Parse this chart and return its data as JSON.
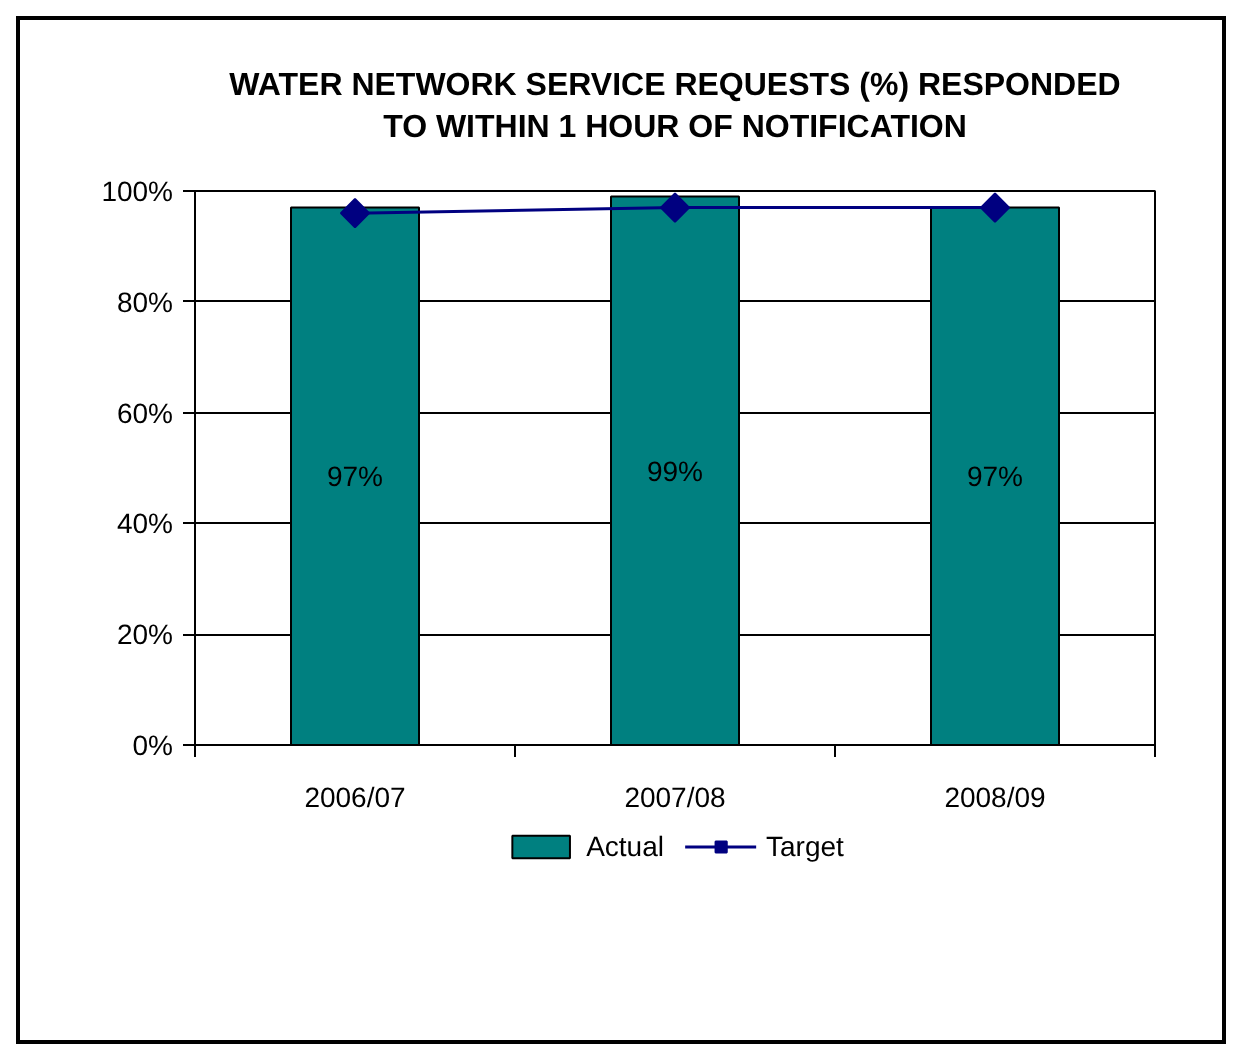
{
  "chart_data": {
    "type": "bar",
    "title": "WATER NETWORK SERVICE REQUESTS (%) RESPONDED\nTO WITHIN 1 HOUR OF NOTIFICATION",
    "categories": [
      "2006/07",
      "2007/08",
      "2008/09"
    ],
    "series": [
      {
        "name": "Actual",
        "color": "#008080",
        "values": [
          97,
          99,
          97
        ],
        "value_labels": [
          "97%",
          "99%",
          "97%"
        ]
      },
      {
        "name": "Target",
        "type": "line",
        "color": "#000080",
        "values": [
          96,
          97,
          97
        ],
        "marker": "diamond",
        "line_style": "solid"
      }
    ],
    "ylim": [
      0,
      100
    ],
    "yticks": [
      {
        "value": 0,
        "label": "0%"
      },
      {
        "value": 20,
        "label": "20%"
      },
      {
        "value": 40,
        "label": "40%"
      },
      {
        "value": 60,
        "label": "60%"
      },
      {
        "value": 80,
        "label": "80%"
      },
      {
        "value": 100,
        "label": "100%"
      }
    ],
    "grid": "y",
    "legend": "bottom"
  }
}
